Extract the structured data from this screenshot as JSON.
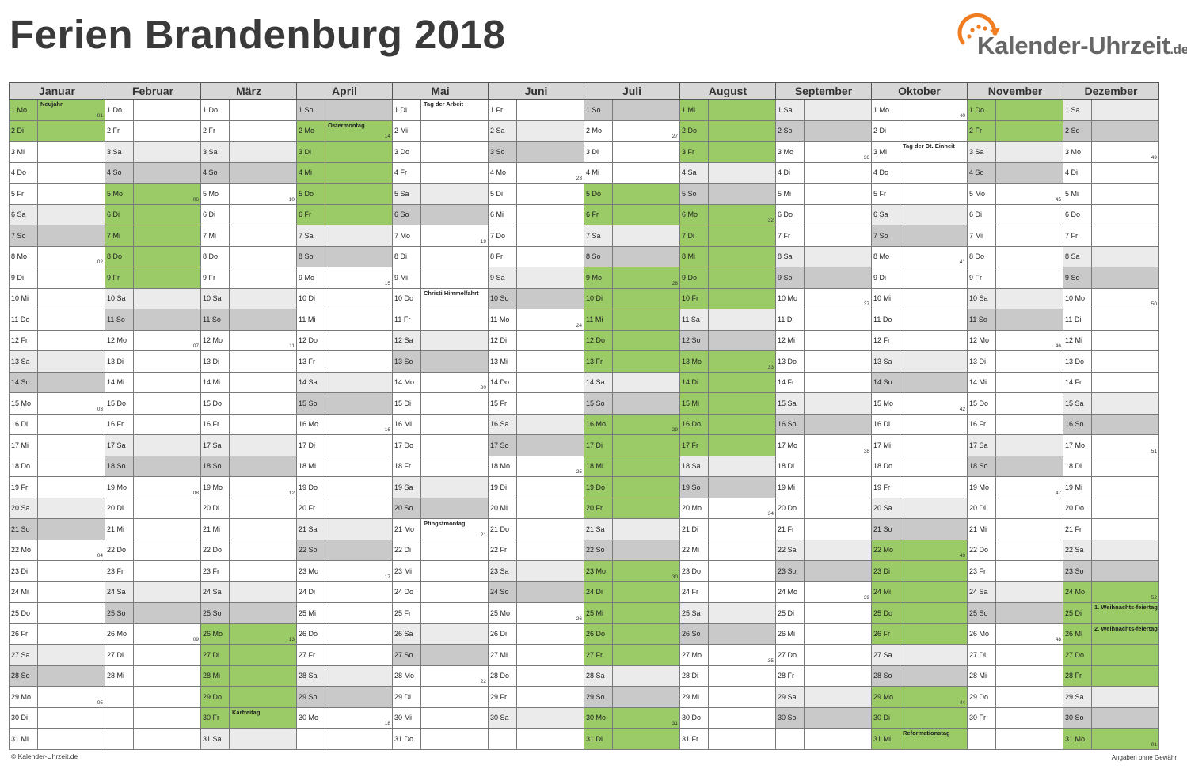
{
  "title": "Ferien Brandenburg 2018",
  "logo": {
    "text": "Kalender-Uhrzeit",
    "tld": ".de",
    "icon": "clock-arrow-icon",
    "accent_color": "#f07d22"
  },
  "colors": {
    "holiday_fill": "#9bcb67",
    "saturday_fill": "#ebebeb",
    "sunday_fill": "#c9c9c9",
    "header_fill": "#d7d7d7"
  },
  "footer": {
    "copyright": "© Kalender-Uhrzeit.de",
    "disclaimer": "Angaben ohne Gewähr"
  },
  "months": [
    {
      "name": "Januar",
      "days": 31,
      "first_weekday": 0,
      "weeks": {
        "1": "01",
        "8": "02",
        "15": "03",
        "22": "04",
        "29": "05"
      },
      "holidays": {
        "1": "Neujahr"
      },
      "ferien": [
        1,
        2
      ]
    },
    {
      "name": "Februar",
      "days": 28,
      "first_weekday": 3,
      "weeks": {
        "5": "06",
        "12": "07",
        "19": "08",
        "26": "09"
      },
      "holidays": {},
      "ferien": [
        5,
        6,
        7,
        8,
        9
      ]
    },
    {
      "name": "März",
      "days": 31,
      "first_weekday": 3,
      "weeks": {
        "5": "10",
        "12": "11",
        "19": "12",
        "26": "13"
      },
      "holidays": {
        "30": "Karfreitag"
      },
      "ferien": [
        26,
        27,
        28,
        29,
        30
      ]
    },
    {
      "name": "April",
      "days": 30,
      "first_weekday": 6,
      "weeks": {
        "2": "14",
        "9": "15",
        "16": "16",
        "23": "17",
        "30": "18"
      },
      "holidays": {
        "2": "Ostermontag"
      },
      "ferien": [
        2,
        3,
        4,
        5,
        6
      ]
    },
    {
      "name": "Mai",
      "days": 31,
      "first_weekday": 1,
      "weeks": {
        "7": "19",
        "14": "20",
        "21": "21",
        "28": "22"
      },
      "holidays": {
        "1": "Tag der Arbeit",
        "10": "Christi Himmelfahrt",
        "21": "Pfingstmontag"
      },
      "ferien": []
    },
    {
      "name": "Juni",
      "days": 30,
      "first_weekday": 4,
      "weeks": {
        "4": "23",
        "11": "24",
        "18": "25",
        "25": "26"
      },
      "holidays": {},
      "ferien": []
    },
    {
      "name": "Juli",
      "days": 31,
      "first_weekday": 6,
      "weeks": {
        "2": "27",
        "9": "28",
        "16": "29",
        "23": "30",
        "30": "31"
      },
      "holidays": {},
      "ferien": [
        5,
        6,
        9,
        10,
        11,
        12,
        13,
        16,
        17,
        18,
        19,
        20,
        23,
        24,
        25,
        26,
        27,
        30,
        31
      ]
    },
    {
      "name": "August",
      "days": 31,
      "first_weekday": 2,
      "weeks": {
        "6": "32",
        "13": "33",
        "20": "34",
        "27": "35"
      },
      "holidays": {},
      "ferien": [
        1,
        2,
        3,
        6,
        7,
        8,
        9,
        10,
        13,
        14,
        15,
        16,
        17
      ]
    },
    {
      "name": "September",
      "days": 30,
      "first_weekday": 5,
      "weeks": {
        "3": "36",
        "10": "37",
        "17": "38",
        "24": "39"
      },
      "holidays": {},
      "ferien": []
    },
    {
      "name": "Oktober",
      "days": 31,
      "first_weekday": 0,
      "weeks": {
        "1": "40",
        "8": "41",
        "15": "42",
        "22": "43",
        "29": "44"
      },
      "holidays": {
        "3": "Tag der Dt. Einheit",
        "31": "Reformationstag"
      },
      "ferien": [
        22,
        23,
        24,
        25,
        26,
        29,
        30,
        31
      ]
    },
    {
      "name": "November",
      "days": 30,
      "first_weekday": 3,
      "weeks": {
        "5": "45",
        "12": "46",
        "19": "47",
        "26": "48"
      },
      "holidays": {},
      "ferien": [
        1,
        2
      ]
    },
    {
      "name": "Dezember",
      "days": 31,
      "first_weekday": 5,
      "weeks": {
        "3": "49",
        "10": "50",
        "17": "51",
        "24": "52",
        "31": "01"
      },
      "holidays": {
        "25": "1. Weihnachts-feiertag",
        "26": "2. Weihnachts-feiertag"
      },
      "ferien": [
        24,
        25,
        26,
        27,
        28,
        31
      ]
    }
  ],
  "weekday_abbr": [
    "Mo",
    "Di",
    "Mi",
    "Do",
    "Fr",
    "Sa",
    "So"
  ]
}
